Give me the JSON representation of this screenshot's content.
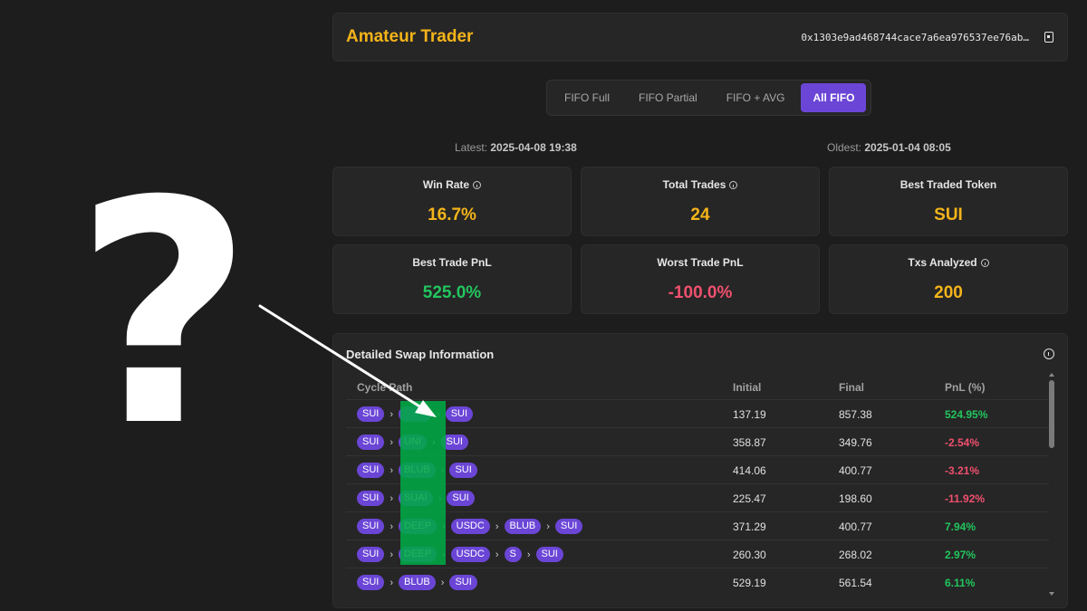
{
  "overlay_symbol": "?",
  "header": {
    "title": "Amateur Trader",
    "wallet_address": "0x1303e9ad468744cace7a6ea976537ee76ab…"
  },
  "tabs": [
    {
      "label": "FIFO Full",
      "active": false
    },
    {
      "label": "FIFO Partial",
      "active": false
    },
    {
      "label": "FIFO + AVG",
      "active": false
    },
    {
      "label": "All FIFO",
      "active": true
    }
  ],
  "timestamps": {
    "latest_label": "Latest:",
    "latest_value": "2025-04-08 19:38",
    "oldest_label": "Oldest:",
    "oldest_value": "2025-01-04 08:05"
  },
  "stats": [
    {
      "label": "Win Rate",
      "value": "16.7%",
      "has_info": true,
      "color": "#f4b41a"
    },
    {
      "label": "Total Trades",
      "value": "24",
      "has_info": true,
      "color": "#f4b41a"
    },
    {
      "label": "Best Traded Token",
      "value": "SUI",
      "has_info": false,
      "color": "#f4b41a"
    },
    {
      "label": "Best Trade PnL",
      "value": "525.0%",
      "has_info": false,
      "color": "#22c55e"
    },
    {
      "label": "Worst Trade PnL",
      "value": "-100.0%",
      "has_info": false,
      "color": "#f0506e"
    },
    {
      "label": "Txs Analyzed",
      "value": "200",
      "has_info": true,
      "color": "#f4b41a"
    }
  ],
  "swaps": {
    "title": "Detailed Swap Information",
    "columns": {
      "path": "Cycle Path",
      "initial": "Initial",
      "final": "Final",
      "pnl": "PnL (%)"
    },
    "rows": [
      {
        "path": [
          "SUI",
          "",
          "SUI"
        ],
        "initial": "137.19",
        "final": "857.38",
        "pnl": "524.95%",
        "positive": true
      },
      {
        "path": [
          "SUI",
          "UNI",
          "SUI"
        ],
        "initial": "358.87",
        "final": "349.76",
        "pnl": "-2.54%",
        "positive": false
      },
      {
        "path": [
          "SUI",
          "BLUB",
          "SUI"
        ],
        "initial": "414.06",
        "final": "400.77",
        "pnl": "-3.21%",
        "positive": false
      },
      {
        "path": [
          "SUI",
          "SUAI",
          "SUI"
        ],
        "initial": "225.47",
        "final": "198.60",
        "pnl": "-11.92%",
        "positive": false
      },
      {
        "path": [
          "SUI",
          "DEEP",
          "USDC",
          "BLUB",
          "SUI"
        ],
        "initial": "371.29",
        "final": "400.77",
        "pnl": "7.94%",
        "positive": true
      },
      {
        "path": [
          "SUI",
          "DEEP",
          "USDC",
          "S",
          "SUI"
        ],
        "initial": "260.30",
        "final": "268.02",
        "pnl": "2.97%",
        "positive": true
      },
      {
        "path": [
          "SUI",
          "BLUB",
          "SUI"
        ],
        "initial": "529.19",
        "final": "561.54",
        "pnl": "6.11%",
        "positive": true
      }
    ]
  },
  "colors": {
    "accent": "#6b46d6",
    "gold": "#f4b41a",
    "positive": "#22c55e",
    "negative": "#f0506e",
    "highlight": "#00aa46"
  }
}
